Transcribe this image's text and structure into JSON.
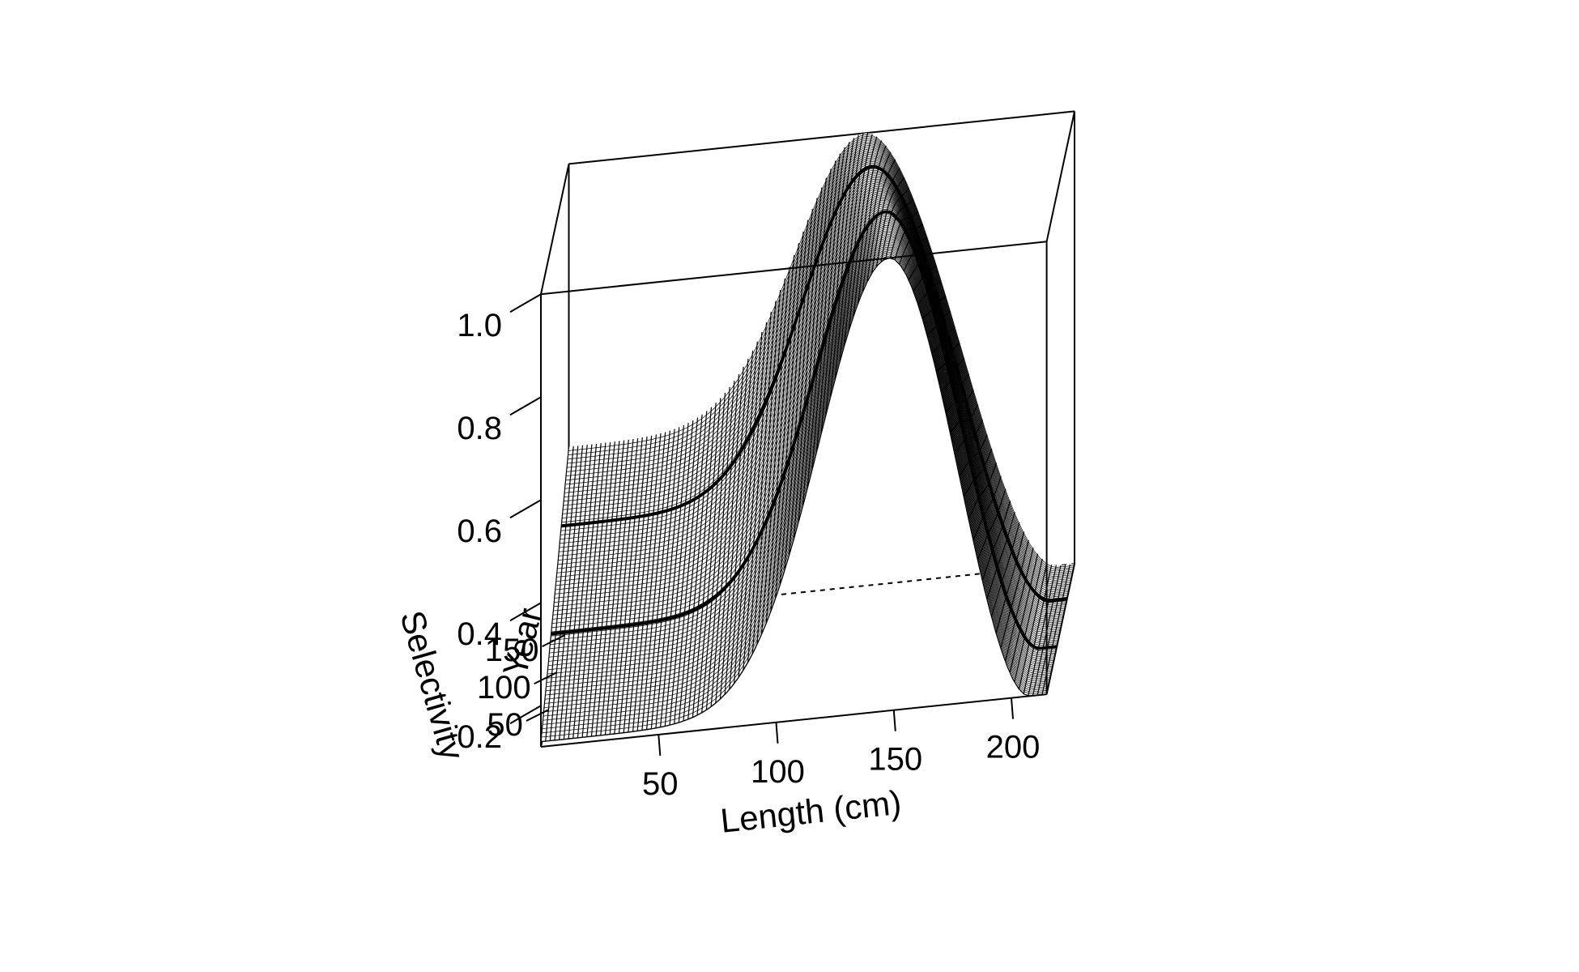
{
  "chart_data": {
    "type": "surface",
    "title": "",
    "xlabel": "Length (cm)",
    "ylabel": "Year",
    "zlabel": "Selectivity",
    "x_ticks": [
      50,
      100,
      150,
      200
    ],
    "y_ticks": [
      50,
      100,
      150
    ],
    "z_ticks": [
      0.2,
      0.4,
      0.6,
      0.8,
      1.0
    ],
    "z_tick_labels": [
      "0.2",
      "0.4",
      "0.6",
      "0.8",
      "1.0"
    ],
    "xlim": [
      0,
      215
    ],
    "ylim": [
      0,
      175
    ],
    "zlim": [
      0.12,
      1.0
    ],
    "surface": {
      "function": "double-normal selectivity, time-varying",
      "plateau_start_cm": [
        {
          "year": 0,
          "length": 148
        },
        {
          "year": 64,
          "length": 142
        },
        {
          "year": 128,
          "length": 132
        },
        {
          "year": 175,
          "length": 126
        }
      ],
      "descending_end_cm": 208,
      "floor_selectivity": 0.12,
      "early_period_selectivity_at_small_length": 0.13,
      "late_period_selectivity_at_small_length": 0.45,
      "highlighted_years": [
        64,
        128
      ]
    },
    "box": true,
    "grid": false,
    "legend": "none"
  }
}
